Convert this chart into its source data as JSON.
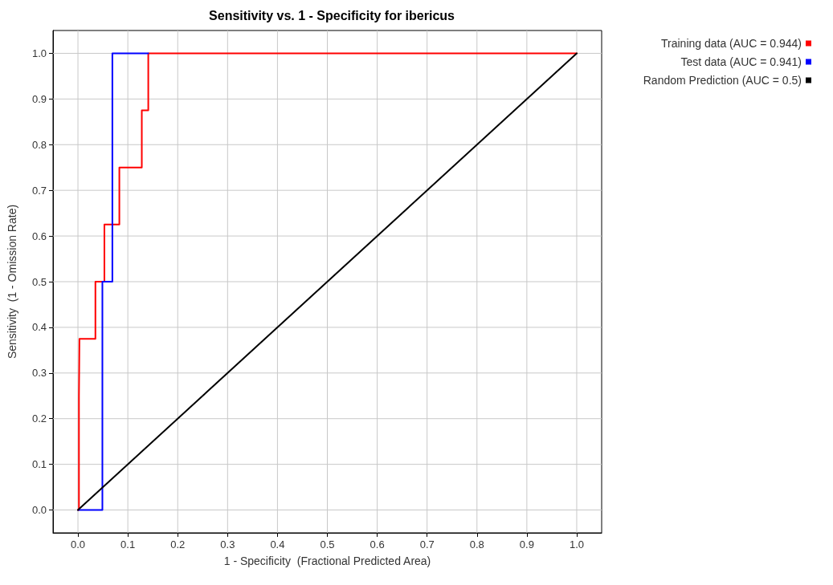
{
  "chart_data": {
    "type": "line",
    "title": "Sensitivity vs. 1 - Specificity for ibericus",
    "xlabel": "1 - Specificity  (Fractional Predicted Area)",
    "ylabel": "Sensitivity  (1 - Omission Rate)",
    "xlim": [
      -0.05,
      1.05
    ],
    "ylim": [
      -0.05,
      1.05
    ],
    "xticks": [
      {
        "value": 0,
        "label": "0.0"
      },
      0.1,
      0.2,
      0.3,
      0.4,
      0.5,
      0.6,
      0.7,
      0.8,
      0.9,
      {
        "value": 1,
        "label": "1.0"
      }
    ],
    "yticks": [
      {
        "value": 0,
        "label": "0.0"
      },
      0.1,
      0.2,
      0.3,
      0.4,
      0.5,
      0.6,
      0.7,
      0.8,
      0.9,
      {
        "value": 1,
        "label": "1.0"
      }
    ],
    "grid": true,
    "legend": "top right",
    "marker": "none",
    "line_style": "solid",
    "series": [
      {
        "name": "Training data (AUC = 0.944)",
        "color": "#ff0000",
        "x": [
          0,
          0.002,
          0.002,
          0.003,
          0.003,
          0.035,
          0.035,
          0.053,
          0.053,
          0.083,
          0.083,
          0.128,
          0.128,
          0.141,
          0.141,
          1.0
        ],
        "values": [
          0,
          0,
          0.25,
          0.25,
          0.375,
          0.375,
          0.5,
          0.5,
          0.625,
          0.625,
          0.75,
          0.75,
          0.875,
          0.875,
          1.0,
          1.0
        ]
      },
      {
        "name": "Test data (AUC = 0.941)",
        "color": "#0000ff",
        "x": [
          0,
          0.049,
          0.049,
          0.069,
          0.069,
          0.141
        ],
        "values": [
          0,
          0,
          0.5,
          0.5,
          1.0,
          1.0
        ]
      },
      {
        "name": "Random Prediction (AUC = 0.5)",
        "color": "#000000",
        "x": [
          0,
          1.0
        ],
        "values": [
          0,
          1.0
        ]
      }
    ]
  }
}
